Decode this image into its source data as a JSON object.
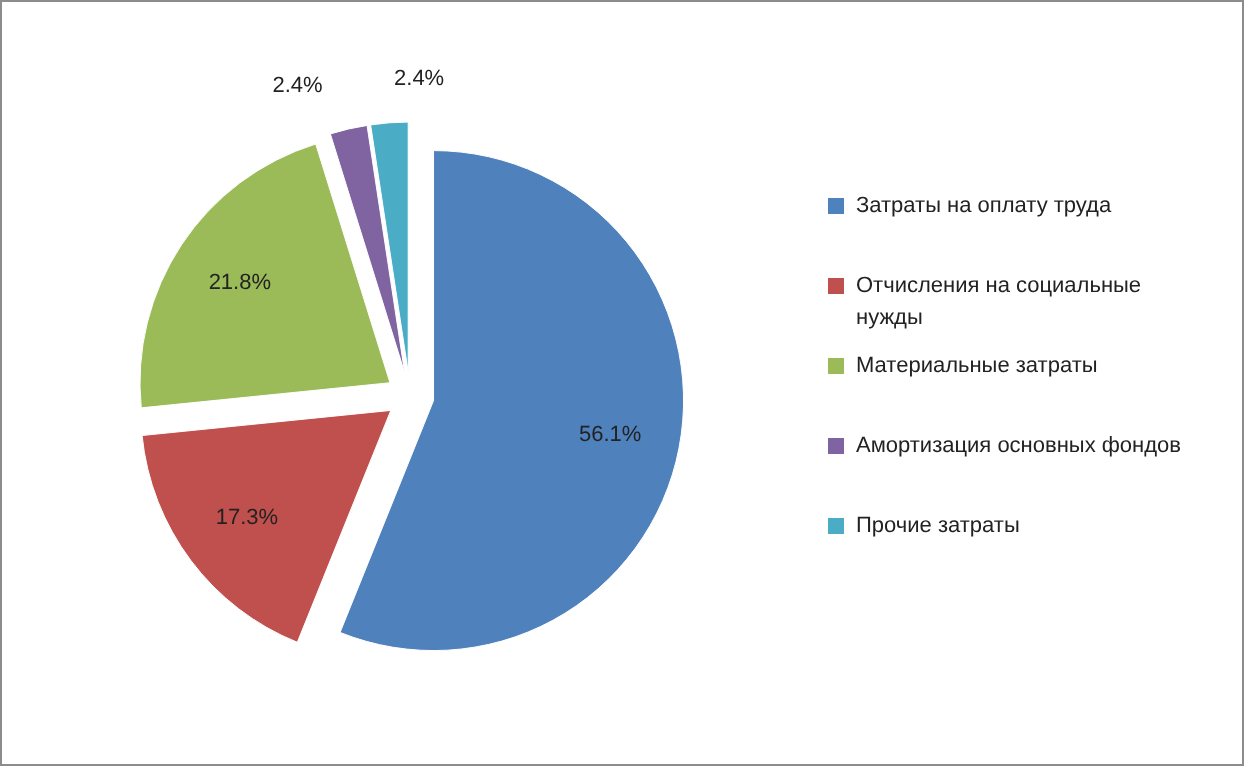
{
  "chart_data": {
    "type": "pie",
    "categories": [
      "Затраты на оплату труда",
      "Отчисления на социальные нужды",
      "Материальные затраты",
      "Амортизация основных фондов",
      "Прочие затраты"
    ],
    "values": [
      56.1,
      17.3,
      21.8,
      2.4,
      2.4
    ],
    "colors": [
      "#4f81bd",
      "#c0504d",
      "#9bbb59",
      "#8064a2",
      "#4bacc6"
    ],
    "value_labels": [
      "56.1%",
      "17.3%",
      "21.8%",
      "2.4%",
      "2.4%"
    ],
    "legend": "right"
  }
}
